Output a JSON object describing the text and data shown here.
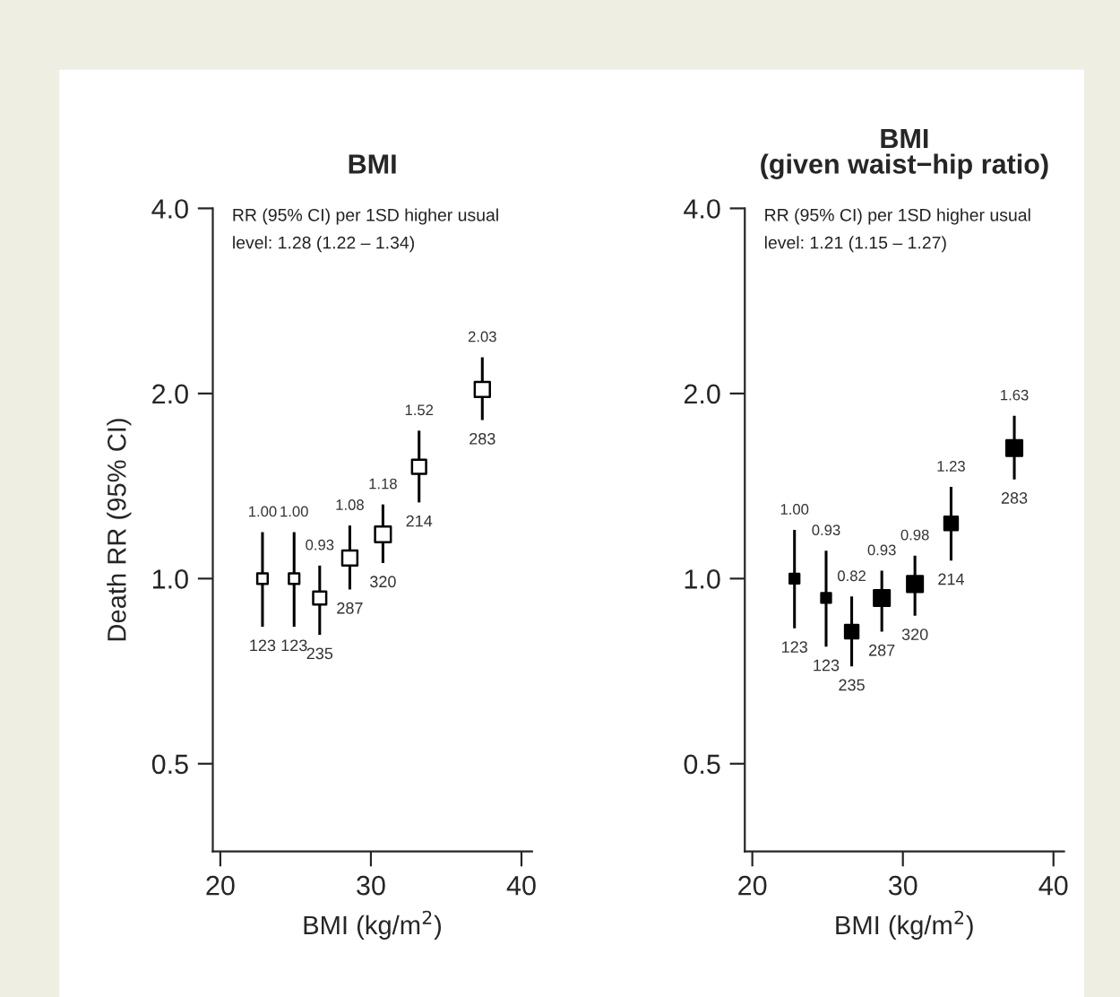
{
  "chart_data": [
    {
      "type": "bubble",
      "title": "BMI",
      "xlabel": "BMI (kg/m$^{2}$)",
      "ylabel": "Death RR (95% CI)",
      "log": "y",
      "marker": "square",
      "grid": false,
      "legend": false,
      "xlim": [
        19.5,
        40.7
      ],
      "xticks": [
        20,
        30,
        40
      ],
      "ylim": [
        0.36,
        4.0
      ],
      "yticks": [
        {
          "value": 0.5,
          "label": "0.5"
        },
        {
          "value": 1,
          "label": "1.0"
        },
        {
          "value": 2,
          "label": "2.0"
        },
        {
          "value": 4,
          "label": "4.0"
        }
      ],
      "annotations": [
        "RR (95% CI) per 1SD higher usual\nlevel: 1.28 (1.22 – 1.34)",
        {
          "text": "1.00",
          "x": 22.8,
          "y": 1.19
        },
        {
          "text": "1.00",
          "x": 24.9,
          "y": 1.19
        },
        {
          "text": "0.93",
          "x": 26.6,
          "y": 1.05
        },
        {
          "text": "1.08",
          "x": 28.6,
          "y": 1.22
        },
        {
          "text": "1.18",
          "x": 30.8,
          "y": 1.32
        },
        {
          "text": "1.52",
          "x": 33.2,
          "y": 1.74
        },
        {
          "text": "2.03",
          "x": 37.4,
          "y": 2.29
        },
        {
          "text": "123",
          "x": 22.8,
          "y": 0.835
        },
        {
          "text": "123",
          "x": 24.9,
          "y": 0.835
        },
        {
          "text": "235",
          "x": 26.6,
          "y": 0.81
        },
        {
          "text": "287",
          "x": 28.6,
          "y": 0.96
        },
        {
          "text": "320",
          "x": 30.8,
          "y": 1.06
        },
        {
          "text": "214",
          "x": 33.2,
          "y": 1.33
        },
        {
          "text": "283",
          "x": 37.4,
          "y": 1.81
        }
      ],
      "series": [
        {
          "color": "#ffffff",
          "x": [
            22.8,
            24.9,
            26.6,
            28.6,
            30.8,
            33.2,
            37.4
          ],
          "values": [
            1.0,
            1.0,
            0.93,
            1.08,
            1.18,
            1.52,
            2.03
          ],
          "errors": [
            [
              0.835,
              1.19
            ],
            [
              0.835,
              1.19
            ],
            [
              0.81,
              1.05
            ],
            [
              0.96,
              1.22
            ],
            [
              1.06,
              1.32
            ],
            [
              1.33,
              1.74
            ],
            [
              1.81,
              2.29
            ]
          ],
          "sizes": [
            0.44,
            0.44,
            0.69,
            0.92,
            1.0,
            0.8,
            0.92
          ]
        }
      ]
    },
    {
      "type": "bubble",
      "title": "BMI\n(given waist−hip ratio)",
      "xlabel": "BMI (kg/m$^{2}$)",
      "log": "y",
      "marker": "square",
      "grid": false,
      "legend": false,
      "xlim": [
        19.5,
        40.7
      ],
      "xticks": [
        20,
        30,
        40
      ],
      "ylim": [
        0.36,
        4.0
      ],
      "yticks": [
        {
          "value": 0.5,
          "label": "0.5"
        },
        {
          "value": 1,
          "label": "1.0"
        },
        {
          "value": 2,
          "label": "2.0"
        },
        {
          "value": 4,
          "label": "4.0"
        }
      ],
      "annotations": [
        "RR (95% CI) per 1SD higher usual\nlevel: 1.21 (1.15 – 1.27)",
        {
          "text": "1.00",
          "x": 22.8,
          "y": 1.2
        },
        {
          "text": "0.93",
          "x": 24.9,
          "y": 1.11
        },
        {
          "text": "0.82",
          "x": 26.6,
          "y": 0.935
        },
        {
          "text": "0.93",
          "x": 28.6,
          "y": 1.03
        },
        {
          "text": "0.98",
          "x": 30.8,
          "y": 1.09
        },
        {
          "text": "1.23",
          "x": 33.2,
          "y": 1.41
        },
        {
          "text": "1.63",
          "x": 37.4,
          "y": 1.84
        },
        {
          "text": "123",
          "x": 22.8,
          "y": 0.83
        },
        {
          "text": "123",
          "x": 24.9,
          "y": 0.775
        },
        {
          "text": "235",
          "x": 26.6,
          "y": 0.72
        },
        {
          "text": "287",
          "x": 28.6,
          "y": 0.82
        },
        {
          "text": "320",
          "x": 30.8,
          "y": 0.87
        },
        {
          "text": "214",
          "x": 33.2,
          "y": 1.07
        },
        {
          "text": "283",
          "x": 37.4,
          "y": 1.45
        }
      ],
      "series": [
        {
          "color": "#000000",
          "x": [
            22.8,
            24.9,
            26.6,
            28.6,
            30.8,
            33.2,
            37.4
          ],
          "values": [
            1.0,
            0.93,
            0.82,
            0.93,
            0.98,
            1.23,
            1.63
          ],
          "errors": [
            [
              0.83,
              1.2
            ],
            [
              0.775,
              1.11
            ],
            [
              0.72,
              0.935
            ],
            [
              0.82,
              1.03
            ],
            [
              0.87,
              1.09
            ],
            [
              1.07,
              1.41
            ],
            [
              1.45,
              1.84
            ]
          ],
          "sizes": [
            0.38,
            0.38,
            0.72,
            1.0,
            1.0,
            0.72,
            1.0
          ]
        }
      ]
    }
  ]
}
